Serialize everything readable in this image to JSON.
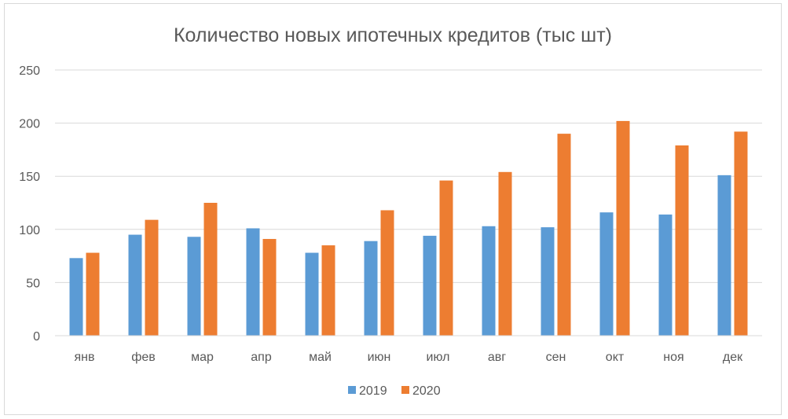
{
  "chart_data": {
    "type": "bar",
    "title": "Количество новых ипотечных кредитов (тыс шт)",
    "xlabel": "",
    "ylabel": "",
    "categories": [
      "янв",
      "фев",
      "мар",
      "апр",
      "май",
      "июн",
      "июл",
      "авг",
      "сен",
      "окт",
      "ноя",
      "дек"
    ],
    "series": [
      {
        "name": "2019",
        "color": "#5b9bd5",
        "values": [
          73,
          95,
          93,
          101,
          78,
          89,
          94,
          103,
          102,
          116,
          114,
          151
        ]
      },
      {
        "name": "2020",
        "color": "#ed7d31",
        "values": [
          78,
          109,
          125,
          91,
          85,
          118,
          146,
          154,
          190,
          202,
          179,
          192
        ]
      }
    ],
    "ylim": [
      0,
      250
    ],
    "yticks": [
      "0",
      "50",
      "100",
      "150",
      "200",
      "250"
    ],
    "grid": true,
    "legend_position": "bottom"
  }
}
